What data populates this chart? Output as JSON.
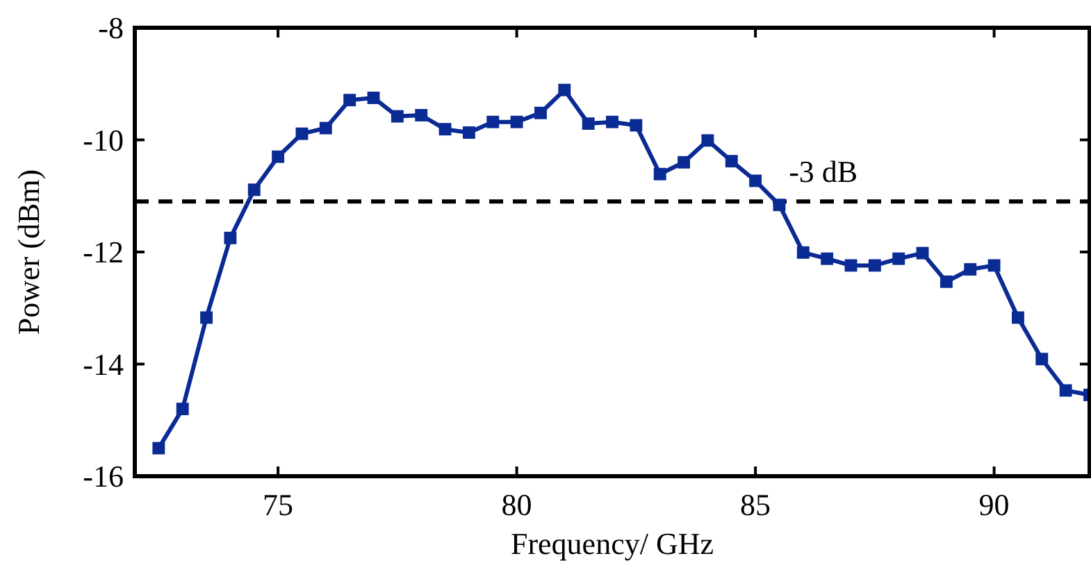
{
  "chart_data": {
    "type": "line",
    "xlabel": "Frequency/ GHz",
    "ylabel": "Power (dBm)",
    "x": [
      72.5,
      73,
      73.5,
      74,
      74.5,
      75,
      75.5,
      76,
      76.5,
      77,
      77.5,
      78,
      78.5,
      79,
      79.5,
      80,
      80.5,
      81,
      81.5,
      82,
      82.5,
      83,
      83.5,
      84,
      84.5,
      85,
      85.5,
      86,
      86.5,
      87,
      87.5,
      88,
      88.5,
      89,
      89.5,
      90,
      90.5,
      91,
      91.5,
      92
    ],
    "series": [
      {
        "color": "#0a2a94",
        "values": [
          -15.5,
          -14.8,
          -13.17,
          -11.75,
          -10.89,
          -10.3,
          -9.89,
          -9.79,
          -9.29,
          -9.25,
          -9.58,
          -9.56,
          -9.81,
          -9.87,
          -9.68,
          -9.68,
          -9.52,
          -9.11,
          -9.71,
          -9.68,
          -9.74,
          -10.61,
          -10.4,
          -10.01,
          -10.38,
          -10.73,
          -11.16,
          -12.01,
          -12.12,
          -12.24,
          -12.24,
          -12.12,
          -12.02,
          -12.53,
          -12.31,
          -12.24,
          -13.17,
          -13.91,
          -14.47,
          -14.55
        ]
      }
    ],
    "xlim": [
      72,
      92
    ],
    "xticks": [
      75,
      80,
      85,
      90
    ],
    "ylim": [
      -16,
      -8
    ],
    "yticks": [
      -16,
      -14,
      -12,
      -10,
      -8
    ],
    "ref_lines": [
      {
        "axis": "y",
        "value": -11.1,
        "label": "-3 dB",
        "color": "#000000",
        "line_style": "dashed"
      }
    ],
    "grid": false,
    "marker": "square",
    "line_style": "solid"
  }
}
